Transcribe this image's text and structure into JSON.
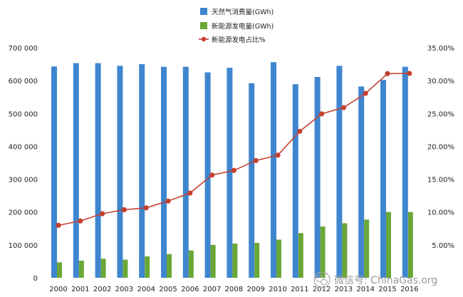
{
  "chart_data": {
    "type": "bar",
    "x": [
      "2000",
      "2001",
      "2002",
      "2003",
      "2004",
      "2005",
      "2006",
      "2007",
      "2008",
      "2009",
      "2010",
      "2011",
      "2012",
      "2013",
      "2014",
      "2015",
      "2016"
    ],
    "series": [
      {
        "name": "天然气消费量(GWh)",
        "type": "bar",
        "axis": "left",
        "color": "#3f86cf",
        "values": [
          643000,
          653000,
          653000,
          645000,
          650000,
          642000,
          642000,
          625000,
          639000,
          592000,
          656000,
          589000,
          611000,
          645000,
          582000,
          602000,
          642000
        ]
      },
      {
        "name": "新能源发电量(GWh)",
        "type": "bar",
        "axis": "left",
        "color": "#6aa737",
        "values": [
          47000,
          52000,
          58000,
          55000,
          65000,
          72000,
          83000,
          100000,
          104000,
          106000,
          116000,
          136000,
          156000,
          166000,
          177000,
          200000,
          200000
        ]
      },
      {
        "name": "新能源发电占比%",
        "type": "line",
        "axis": "right",
        "color": "#c44030",
        "values": [
          0.0798,
          0.0864,
          0.0975,
          0.1035,
          0.1064,
          0.1167,
          0.1289,
          0.1562,
          0.1633,
          0.1783,
          0.1865,
          0.2228,
          0.2494,
          0.2589,
          0.2806,
          0.3106,
          0.3109
        ]
      }
    ],
    "y_left": {
      "ylim": [
        0,
        700000
      ],
      "ticks": [
        0,
        100000,
        200000,
        300000,
        400000,
        500000,
        600000,
        700000
      ],
      "tick_labels": [
        "0",
        "100 000",
        "200 000",
        "300 000",
        "400 000",
        "500 000",
        "600 000",
        "700 000"
      ]
    },
    "y_right": {
      "ylim": [
        0,
        0.35
      ],
      "ticks": [
        0.05,
        0.1,
        0.15,
        0.2,
        0.25,
        0.3,
        0.35
      ],
      "tick_labels": [
        "5.00%",
        "10.00%",
        "15.00%",
        "20.00%",
        "25.00%",
        "30.00%",
        "35.00%"
      ]
    },
    "legend_position": "top",
    "grid": false,
    "title": "",
    "xlabel": "",
    "ylabel": ""
  },
  "watermark": {
    "text": "微信号: ChinaGas.org",
    "icon": "wechat-icon"
  }
}
